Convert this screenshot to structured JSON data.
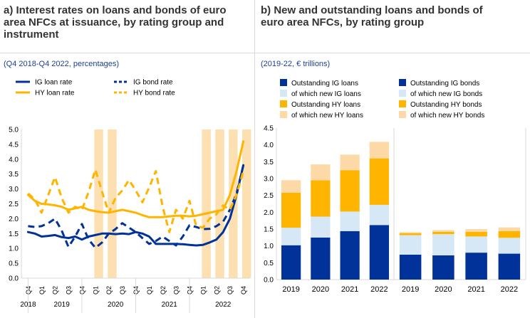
{
  "panel_a": {
    "title_lines": [
      "a) Interest rates on loans and bonds of euro",
      "area NFCs at issuance, by rating group and",
      "instrument"
    ],
    "subtitle": "(Q4 2018-Q4 2022, percentages)"
  },
  "panel_b": {
    "title_lines": [
      "b) New and outstanding loans and bonds of",
      "euro area NFCs, by rating group"
    ],
    "subtitle": "(2019-22, € trillions)"
  },
  "colors": {
    "ig": "#003299",
    "hy": "#ffb400",
    "ig_light": "#d6e8f5",
    "hy_light": "#fdd9a8",
    "shade": "#fde0b1",
    "grid": "#d9d9d9",
    "text": "#000000"
  },
  "chart_data": [
    {
      "type": "line",
      "title": "",
      "xlabel": "",
      "ylabel": "",
      "ylim": [
        0,
        5
      ],
      "yticks": [
        "0.0",
        "0.5",
        "1.0",
        "1.5",
        "2.0",
        "2.5",
        "3.0",
        "3.5",
        "4.0",
        "4.5",
        "5.0"
      ],
      "quarter_labels": [
        "Q4",
        "Q1",
        "Q2",
        "Q3",
        "Q4",
        "Q1",
        "Q2",
        "Q3",
        "Q4",
        "Q1",
        "Q2",
        "Q3",
        "Q4",
        "Q1",
        "Q2",
        "Q3",
        "Q4"
      ],
      "year_labels": [
        {
          "label": "2018",
          "center_index": 0
        },
        {
          "label": "2019",
          "center_index": 2.5
        },
        {
          "label": "2020",
          "center_index": 6.5
        },
        {
          "label": "2021",
          "center_index": 10.5
        },
        {
          "label": "2022",
          "center_index": 14.5
        }
      ],
      "year_dividers": [
        0.5,
        4.5,
        8.5,
        12.5
      ],
      "shaded_quarter_index_ranges": [
        [
          5.42,
          6.08
        ],
        [
          6.42,
          7.08
        ],
        [
          13.42,
          14.08
        ],
        [
          14.42,
          15.08
        ],
        [
          15.42,
          16.08
        ],
        [
          16.42,
          17.08
        ]
      ],
      "legend_placement": "top",
      "x_points_per_quarter": 2,
      "series": [
        {
          "name": "IG loan rate",
          "style": "solid",
          "color_key": "ig",
          "values": [
            1.55,
            1.5,
            1.4,
            1.42,
            1.45,
            1.38,
            1.35,
            1.4,
            1.3,
            1.4,
            1.45,
            1.5,
            1.5,
            1.48,
            1.5,
            1.48,
            1.55,
            1.5,
            1.4,
            1.15,
            1.15,
            1.15,
            1.15,
            1.14,
            1.12,
            1.1,
            1.12,
            1.2,
            1.3,
            1.55,
            2.0,
            2.8,
            3.8
          ]
        },
        {
          "name": "IG bond rate",
          "style": "dash",
          "color_key": "ig",
          "values": [
            1.75,
            1.72,
            1.75,
            1.85,
            2.0,
            1.6,
            1.05,
            1.4,
            1.82,
            1.3,
            1.02,
            1.2,
            1.5,
            1.65,
            1.85,
            1.7,
            1.55,
            1.35,
            1.15,
            1.25,
            1.4,
            1.25,
            1.1,
            1.4,
            1.78,
            1.72,
            1.65,
            1.66,
            1.75,
            1.9,
            2.3,
            2.85,
            3.8
          ]
        },
        {
          "name": "HY loan rate",
          "style": "solid",
          "color_key": "hy",
          "values": [
            2.8,
            2.6,
            2.5,
            2.48,
            2.45,
            2.4,
            2.3,
            2.35,
            2.4,
            2.3,
            2.25,
            2.22,
            2.2,
            2.25,
            2.3,
            2.25,
            2.2,
            2.12,
            2.05,
            2.05,
            2.05,
            2.08,
            2.1,
            2.1,
            2.08,
            2.1,
            2.15,
            2.2,
            2.25,
            2.3,
            2.8,
            3.6,
            4.6
          ]
        },
        {
          "name": "HY bond rate",
          "style": "dash",
          "color_key": "hy",
          "values": [
            2.85,
            2.65,
            2.2,
            2.8,
            3.4,
            2.7,
            2.2,
            2.4,
            2.3,
            2.9,
            3.65,
            2.9,
            2.2,
            2.7,
            2.95,
            3.3,
            2.95,
            2.55,
            3.05,
            3.6,
            2.4,
            1.55,
            2.3,
            2.0,
            2.6,
            1.75,
            1.7,
            2.0,
            2.15,
            2.45,
            2.3,
            2.8,
            3.6
          ]
        }
      ]
    },
    {
      "type": "bar",
      "stacked": true,
      "title": "",
      "xlabel": "",
      "ylabel": "",
      "ylim": [
        0,
        4.5
      ],
      "yticks": [
        "0.0",
        "0.5",
        "1.0",
        "1.5",
        "2.0",
        "2.5",
        "3.0",
        "3.5",
        "4.0",
        "4.5"
      ],
      "categories": [
        "2019",
        "2020",
        "2021",
        "2022"
      ],
      "legend_placement": "top",
      "legend": [
        {
          "name": "Outstanding IG loans",
          "color_key": "ig"
        },
        {
          "name": "of which new IG loans",
          "color_key": "ig_light"
        },
        {
          "name": "Outstanding HY loans",
          "color_key": "hy"
        },
        {
          "name": "of which new HY loans",
          "color_key": "hy_light"
        },
        {
          "name": "Outstanding IG bonds",
          "color_key": "ig"
        },
        {
          "name": "of which new IG bonds",
          "color_key": "ig_light"
        },
        {
          "name": "Outstanding HY bonds",
          "color_key": "hy"
        },
        {
          "name": "of which new HY bonds",
          "color_key": "hy_light"
        }
      ],
      "groups": [
        {
          "name": "loans",
          "series": [
            {
              "color_key": "ig",
              "values": [
                1.02,
                1.25,
                1.44,
                1.62
              ]
            },
            {
              "color_key": "ig_light",
              "values": [
                0.52,
                0.62,
                0.58,
                0.6
              ]
            },
            {
              "color_key": "hy",
              "values": [
                1.04,
                1.08,
                1.23,
                1.38
              ]
            },
            {
              "color_key": "hy_light",
              "values": [
                0.37,
                0.47,
                0.46,
                0.49
              ]
            }
          ]
        },
        {
          "name": "bonds",
          "series": [
            {
              "color_key": "ig",
              "values": [
                0.74,
                0.72,
                0.8,
                0.77
              ]
            },
            {
              "color_key": "ig_light",
              "values": [
                0.58,
                0.63,
                0.48,
                0.47
              ]
            },
            {
              "color_key": "hy",
              "values": [
                0.06,
                0.07,
                0.14,
                0.2
              ]
            },
            {
              "color_key": "hy_light",
              "values": [
                0.03,
                0.05,
                0.08,
                0.11
              ]
            }
          ]
        }
      ]
    }
  ]
}
